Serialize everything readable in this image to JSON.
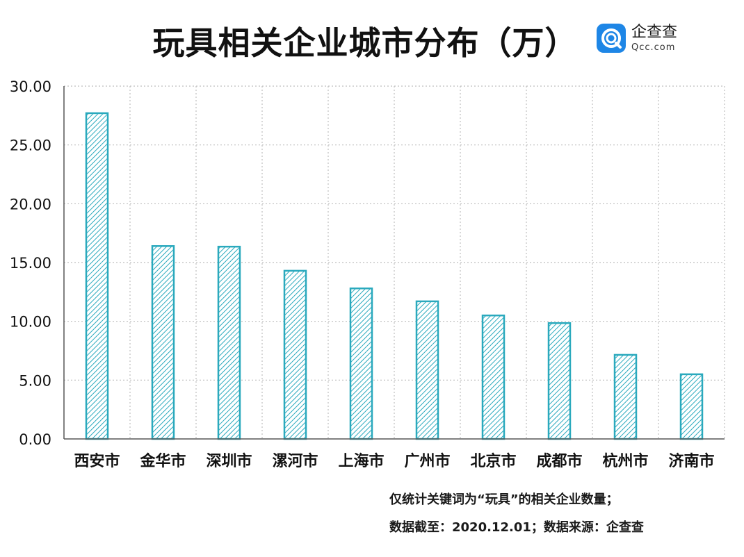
{
  "logo": {
    "name": "企查查",
    "domain": "Qcc.com",
    "icon": "qcc-logo-icon"
  },
  "notes": {
    "line1": "仅统计关键词为“玩具”的相关企业数量；",
    "line2": "数据截至：2020.12.01；数据来源：企查查"
  },
  "colors": {
    "bar_stroke": "#2aa9bd",
    "bar_hatch": "#2aa9bd",
    "grid": "#bdbdbd",
    "axis": "#555555"
  },
  "chart_data": {
    "type": "bar",
    "title": "玩具相关企业城市分布（万）",
    "categories": [
      "西安市",
      "金华市",
      "深圳市",
      "漯河市",
      "上海市",
      "广州市",
      "北京市",
      "成都市",
      "杭州市",
      "济南市"
    ],
    "values": [
      27.7,
      16.4,
      16.35,
      14.3,
      12.8,
      11.7,
      10.5,
      9.85,
      7.15,
      5.5
    ],
    "ylim": [
      0,
      30
    ],
    "yticks": [
      "0.00",
      "5.00",
      "10.00",
      "15.00",
      "20.00",
      "25.00",
      "30.00"
    ],
    "xlabel": "",
    "ylabel": "",
    "grid": true
  }
}
